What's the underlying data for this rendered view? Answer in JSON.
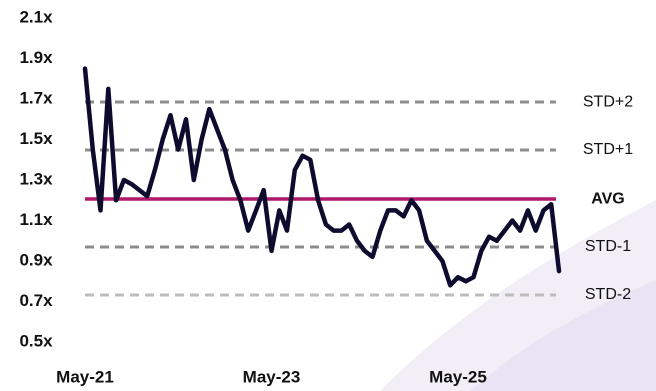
{
  "chart_data": {
    "type": "line",
    "categories": [
      "May-21",
      null,
      null,
      null,
      null,
      null,
      null,
      null,
      null,
      null,
      null,
      null,
      null,
      null,
      null,
      null,
      null,
      null,
      null,
      null,
      null,
      null,
      null,
      null,
      "May-23",
      null,
      null,
      null,
      null,
      null,
      null,
      null,
      null,
      null,
      null,
      null,
      null,
      null,
      null,
      null,
      null,
      null,
      null,
      null,
      null,
      null,
      null,
      null,
      "May-25",
      null,
      null,
      null,
      null,
      null,
      null,
      null,
      null,
      null,
      null,
      null,
      null,
      null
    ],
    "series": [
      {
        "color": "#0d0c2e",
        "values": [
          1.85,
          1.45,
          1.15,
          1.75,
          1.2,
          1.3,
          1.28,
          1.25,
          1.22,
          1.35,
          1.5,
          1.62,
          1.45,
          1.6,
          1.3,
          1.5,
          1.65,
          1.55,
          1.45,
          1.3,
          1.2,
          1.05,
          1.15,
          1.25,
          0.95,
          1.15,
          1.05,
          1.35,
          1.42,
          1.4,
          1.2,
          1.08,
          1.05,
          1.05,
          1.08,
          1.0,
          0.95,
          0.92,
          1.05,
          1.15,
          1.15,
          1.12,
          1.2,
          1.15,
          1.0,
          0.95,
          0.9,
          0.78,
          0.82,
          0.8,
          0.82,
          0.95,
          1.02,
          1.0,
          1.05,
          1.1,
          1.05,
          1.15,
          1.05,
          1.15,
          1.18,
          0.85
        ]
      }
    ],
    "reference_lines": [
      {
        "name": "STD+2",
        "value": 1.685,
        "color": "#8c8c8c",
        "dashed": true,
        "bold": false
      },
      {
        "name": "STD+1",
        "value": 1.448,
        "color": "#8c8c8c",
        "dashed": true,
        "bold": false
      },
      {
        "name": "AVG",
        "value": 1.206,
        "color": "#b0186c",
        "dashed": false,
        "bold": true
      },
      {
        "name": "STD-1",
        "value": 0.969,
        "color": "#8c8c8c",
        "dashed": true,
        "bold": false
      },
      {
        "name": "STD-2",
        "value": 0.732,
        "color": "#bdbdbd",
        "dashed": true,
        "bold": false
      }
    ],
    "ylim": [
      0.5,
      2.1
    ],
    "yticks": [
      {
        "value": 0.5,
        "label": "0.5x"
      },
      {
        "value": 0.7,
        "label": "0.7x"
      },
      {
        "value": 0.9,
        "label": "0.9x"
      },
      {
        "value": 1.1,
        "label": "1.1x"
      },
      {
        "value": 1.3,
        "label": "1.3x"
      },
      {
        "value": 1.5,
        "label": "1.5x"
      },
      {
        "value": 1.7,
        "label": "1.7x"
      },
      {
        "value": 1.9,
        "label": "1.9x"
      },
      {
        "value": 2.1,
        "label": "2.1x"
      }
    ],
    "grid": false
  }
}
